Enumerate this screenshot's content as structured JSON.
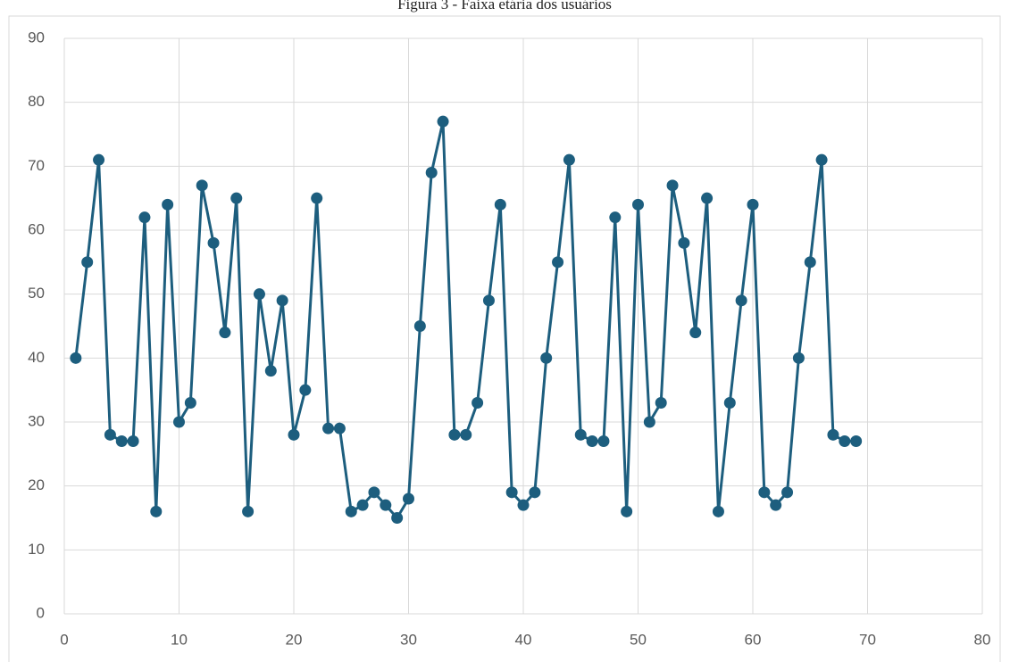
{
  "chart_data": {
    "type": "line",
    "title": "Figura 3 - Faixa etária dos usuários",
    "x": [
      1,
      2,
      3,
      4,
      5,
      6,
      7,
      8,
      9,
      10,
      11,
      12,
      13,
      14,
      15,
      16,
      17,
      18,
      19,
      20,
      21,
      22,
      23,
      24,
      25,
      26,
      27,
      28,
      29,
      30,
      31,
      32,
      33,
      34,
      35,
      36,
      37,
      38,
      39,
      40,
      41,
      42,
      43,
      44,
      45,
      46,
      47,
      48,
      49,
      50,
      51,
      52,
      53,
      54,
      55,
      56,
      57,
      58,
      59,
      60,
      61,
      62,
      63,
      64,
      65,
      66,
      67,
      68,
      69
    ],
    "values": [
      40,
      55,
      71,
      28,
      27,
      27,
      62,
      16,
      64,
      30,
      33,
      67,
      58,
      44,
      65,
      16,
      50,
      38,
      49,
      28,
      35,
      65,
      29,
      29,
      16,
      17,
      19,
      17,
      15,
      18,
      45,
      69,
      77,
      28,
      28,
      33,
      49,
      64,
      19,
      17,
      19,
      40,
      55,
      71,
      28,
      27,
      27,
      62,
      16,
      64,
      30,
      33,
      67,
      58,
      44,
      65,
      16,
      33,
      49,
      64,
      19,
      17,
      19,
      40,
      55,
      71,
      28,
      27,
      27
    ],
    "color": "#1d5e7e",
    "xlim": [
      0,
      80
    ],
    "xticks": [
      0,
      10,
      20,
      30,
      40,
      50,
      60,
      70,
      80
    ],
    "ylim": [
      0,
      90
    ],
    "yticks": [
      0,
      10,
      20,
      30,
      40,
      50,
      60,
      70,
      80,
      90
    ],
    "grid": true
  }
}
